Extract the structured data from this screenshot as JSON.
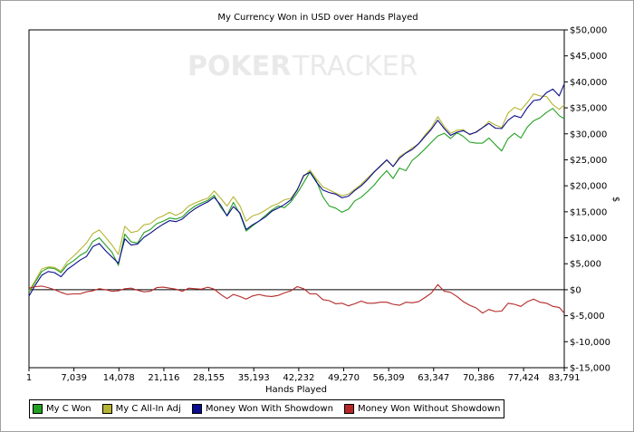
{
  "chart_data": {
    "type": "line",
    "title": "My Currency Won in USD over Hands Played",
    "xlabel": "Hands Played",
    "ylabel": "$",
    "watermark": {
      "part1": "POKER",
      "part2": "TRACKER"
    },
    "xlim": [
      1,
      83791
    ],
    "ylim": [
      -15000,
      50000
    ],
    "x_ticks": [
      1,
      7039,
      14078,
      21116,
      28155,
      35193,
      42232,
      49270,
      56309,
      63347,
      70386,
      77424,
      83791
    ],
    "x_tick_labels": [
      "1",
      "7,039",
      "14,078",
      "21,116",
      "28,155",
      "35,193",
      "42,232",
      "49,270",
      "56,309",
      "63,347",
      "70,386",
      "77,424",
      "83,791"
    ],
    "y_ticks": [
      50000,
      45000,
      40000,
      35000,
      30000,
      25000,
      20000,
      15000,
      10000,
      5000,
      0,
      -5000,
      -10000,
      -15000
    ],
    "y_tick_labels": [
      "$50,000",
      "$45,000",
      "$40,000",
      "$35,000",
      "$30,000",
      "$25,000",
      "$20,000",
      "$15,000",
      "$10,000",
      "$5,000",
      "$0",
      "$-5,000",
      "$-10,000",
      "$-15,000"
    ],
    "zero_line": true,
    "grid": false,
    "legend_position": "bottom-left",
    "x": [
      1,
      1000,
      2000,
      3000,
      4000,
      5000,
      6000,
      7000,
      8000,
      9000,
      10000,
      11000,
      12000,
      13000,
      14000,
      15000,
      16000,
      17000,
      18000,
      19000,
      20000,
      21000,
      22000,
      23000,
      24000,
      25000,
      26000,
      27000,
      28000,
      29000,
      30000,
      31000,
      32000,
      33000,
      34000,
      35000,
      36000,
      37000,
      38000,
      39000,
      40000,
      41000,
      42000,
      43000,
      44000,
      45000,
      46000,
      47000,
      48000,
      49000,
      50000,
      51000,
      52000,
      53000,
      54000,
      55000,
      56000,
      57000,
      58000,
      59000,
      60000,
      61000,
      62000,
      63000,
      64000,
      65000,
      66000,
      67000,
      68000,
      69000,
      70000,
      71000,
      72000,
      73000,
      74000,
      75000,
      76000,
      77000,
      78000,
      79000,
      80000,
      81000,
      82000,
      83000,
      83791
    ],
    "series": [
      {
        "name": "My C Won",
        "color": "#22a022",
        "values": [
          -500,
          1500,
          3500,
          4200,
          4100,
          3300,
          4800,
          5600,
          6600,
          7300,
          9300,
          10000,
          8600,
          7200,
          4700,
          10700,
          9200,
          9000,
          11000,
          11600,
          12700,
          13200,
          13800,
          13600,
          14000,
          15200,
          16100,
          16700,
          17200,
          18200,
          15900,
          14300,
          16800,
          14600,
          11300,
          12300,
          13200,
          14300,
          15300,
          16100,
          15800,
          16900,
          18600,
          20600,
          22700,
          20900,
          17900,
          16100,
          15700,
          14900,
          15500,
          17100,
          17800,
          18900,
          20100,
          21600,
          22900,
          21400,
          23400,
          22900,
          24900,
          25900,
          27100,
          28400,
          29600,
          30100,
          29100,
          30200,
          29500,
          28400,
          28200,
          28200,
          29200,
          27900,
          26700,
          29100,
          30100,
          29200,
          31300,
          32500,
          33100,
          34100,
          34900,
          33500,
          32900
        ]
      },
      {
        "name": "My C All-In Adj",
        "color": "#b4b432",
        "values": [
          -200,
          1800,
          4000,
          4400,
          4300,
          3600,
          5400,
          6500,
          7700,
          9000,
          10800,
          11500,
          10100,
          8600,
          6800,
          12200,
          11000,
          11300,
          12500,
          12700,
          13700,
          14200,
          14900,
          14300,
          14900,
          16100,
          16700,
          17200,
          17600,
          19000,
          17600,
          16100,
          17900,
          16200,
          13200,
          14200,
          14600,
          15300,
          16100,
          16600,
          17300,
          17600,
          19300,
          21800,
          23000,
          21300,
          19800,
          19200,
          18600,
          18100,
          18400,
          19300,
          20300,
          21500,
          22700,
          23700,
          24900,
          23700,
          25600,
          26400,
          27300,
          28100,
          29800,
          31200,
          33300,
          31400,
          30100,
          30700,
          30800,
          29800,
          30400,
          31200,
          32400,
          31700,
          31200,
          34000,
          35100,
          34600,
          36000,
          37700,
          37300,
          37200,
          35600,
          34700,
          35600
        ]
      },
      {
        "name": "Money Won With Showdown",
        "color": "#0c0c8c",
        "values": [
          -1200,
          900,
          2800,
          3500,
          3300,
          2500,
          3900,
          4800,
          5700,
          6400,
          8300,
          8900,
          7500,
          6300,
          5100,
          9800,
          8600,
          8800,
          10100,
          10900,
          11800,
          12600,
          13300,
          13100,
          13600,
          14700,
          15600,
          16300,
          16900,
          17800,
          16300,
          14200,
          16000,
          14800,
          11600,
          12500,
          13200,
          14000,
          15100,
          15700,
          16400,
          17300,
          19200,
          22000,
          22600,
          20700,
          19200,
          18700,
          18400,
          17700,
          18000,
          19100,
          20000,
          21200,
          22600,
          23800,
          25000,
          23700,
          25300,
          26300,
          27000,
          28100,
          29500,
          30900,
          32600,
          31000,
          29700,
          30300,
          30600,
          29900,
          30300,
          31200,
          32000,
          31100,
          31000,
          32600,
          33500,
          33100,
          35000,
          36400,
          36600,
          37900,
          38600,
          37300,
          39600
        ]
      },
      {
        "name": "Money Won Without Showdown",
        "color": "#b42828",
        "values": [
          300,
          600,
          700,
          400,
          0,
          -500,
          -900,
          -800,
          -800,
          -400,
          -200,
          200,
          0,
          -300,
          -200,
          200,
          300,
          -100,
          -400,
          -300,
          400,
          500,
          300,
          100,
          -300,
          300,
          200,
          100,
          500,
          100,
          -900,
          -1700,
          -900,
          -1300,
          -1800,
          -1200,
          -900,
          -1200,
          -1300,
          -1100,
          -600,
          -200,
          600,
          200,
          -800,
          -800,
          -1900,
          -2100,
          -2700,
          -2600,
          -3100,
          -2700,
          -2200,
          -2600,
          -2600,
          -2400,
          -2400,
          -2800,
          -3000,
          -2400,
          -2500,
          -2300,
          -1500,
          -600,
          1000,
          -300,
          -500,
          -1300,
          -2300,
          -3000,
          -3500,
          -4500,
          -3800,
          -4200,
          -4100,
          -2600,
          -2800,
          -3200,
          -2300,
          -1800,
          -2400,
          -2600,
          -3200,
          -3400,
          -4500
        ]
      }
    ]
  }
}
